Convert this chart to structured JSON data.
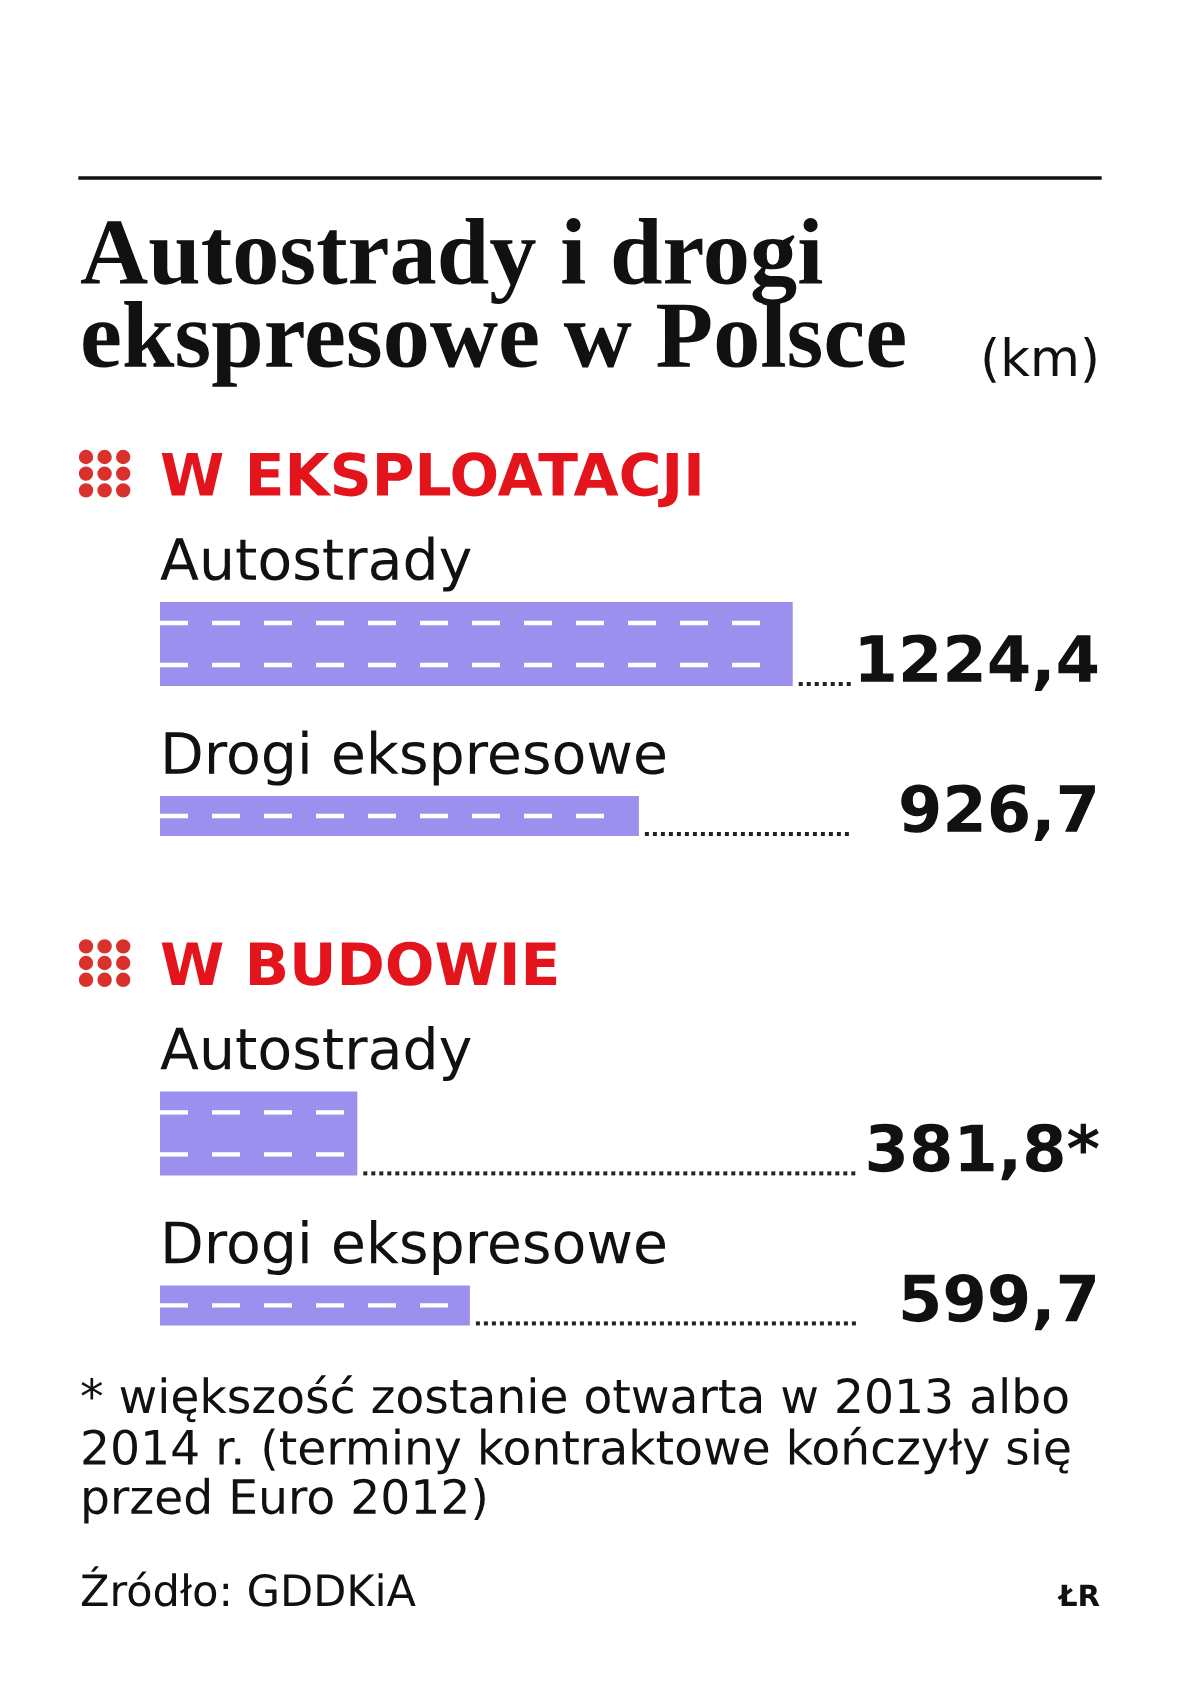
{
  "chart_data": [
    {
      "type": "other",
      "title": "Autostrady i drogi ekspresowe w Polsce",
      "subtitle": "(km)"
    },
    {
      "type": "bar",
      "orientation": "horizontal",
      "title": "W EKSPLOATACJI",
      "categories": [
        "Autostrady",
        "Drogi ekspresowe"
      ],
      "values": [
        1224.4,
        926.7
      ],
      "value_labels": [
        "1224,4",
        "926,7"
      ],
      "color": "#9b90ee",
      "tick_labels": "y"
    },
    {
      "type": "bar",
      "orientation": "horizontal",
      "title": "W BUDOWIE",
      "categories": [
        "Autostrady",
        "Drogi ekspresowe"
      ],
      "values": [
        381.8,
        599.7
      ],
      "value_labels": [
        "381,8*",
        "599,7"
      ],
      "color": "#9b90ee",
      "tick_labels": "y",
      "annotations": [
        "* większość zostanie otwarta w 2013 albo 2014 r. (terminy kontraktowe kończyły się przed Euro 2012)",
        "Źródło: GDDKiA",
        "ŁR"
      ]
    }
  ]
}
